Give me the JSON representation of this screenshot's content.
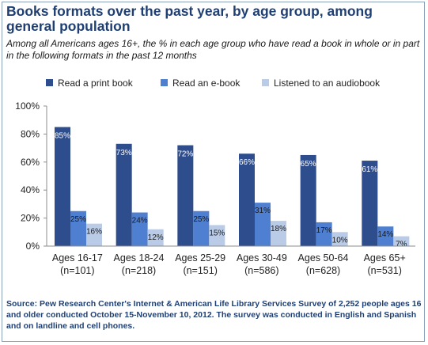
{
  "title": "Books formats over the past year, by age group, among general population",
  "subtitle": "Among all Americans ages 16+, the % in each age group who have read a book in whole or in part in the following formats in the past 12 months",
  "source": "Source: Pew Research Center's Internet & American Life Library Services Survey of 2,252 people ages 16 and older conducted October 15-November 10, 2012. The survey was conducted in English and Spanish and on landline and cell phones.",
  "chart_data": {
    "type": "bar",
    "categories": [
      [
        "Ages 16-17",
        "(n=101)"
      ],
      [
        "Ages 18-24",
        "(n=218)"
      ],
      [
        "Ages 25-29",
        "(n=151)"
      ],
      [
        "Ages 30-49",
        "(n=586)"
      ],
      [
        "Ages 50-64",
        "(n=628)"
      ],
      [
        "Ages 65+",
        "(n=531)"
      ]
    ],
    "series": [
      {
        "name": "Read a print book",
        "color": "#2e4d8c",
        "values": [
          85,
          73,
          72,
          66,
          65,
          61
        ]
      },
      {
        "name": "Read an e-book",
        "color": "#4f7fd1",
        "values": [
          25,
          24,
          25,
          31,
          17,
          14
        ]
      },
      {
        "name": "Listened to an audiobook",
        "color": "#b9cbe6",
        "values": [
          16,
          12,
          15,
          18,
          10,
          7
        ]
      }
    ],
    "ylim": [
      0,
      100
    ],
    "yticks": [
      0,
      20,
      40,
      60,
      80,
      100
    ],
    "ytick_labels": [
      "0%",
      "20%",
      "40%",
      "60%",
      "80%",
      "100%"
    ],
    "value_suffix": "%",
    "grid": false,
    "legend_position": "top"
  }
}
